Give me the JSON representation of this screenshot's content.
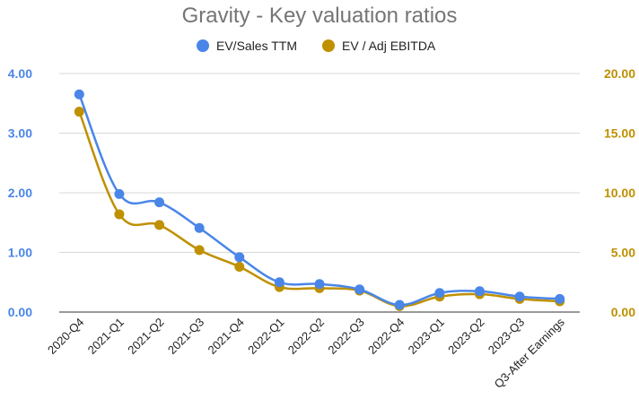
{
  "chart_data": {
    "type": "line",
    "title": "Gravity - Key valuation ratios",
    "categories": [
      "2020-Q4",
      "2021-Q1",
      "2021-Q2",
      "2021-Q3",
      "2021-Q4",
      "2022-Q1",
      "2022-Q2",
      "2022-Q3",
      "2022-Q4",
      "2023-Q1",
      "2023-Q2",
      "2023-Q3",
      "Q3-After Earnings"
    ],
    "series": [
      {
        "name": "EV/Sales TTM",
        "axis": "left",
        "color": "#4a86e8",
        "values": [
          3.65,
          1.98,
          1.84,
          1.41,
          0.92,
          0.5,
          0.47,
          0.38,
          0.12,
          0.32,
          0.35,
          0.26,
          0.22
        ]
      },
      {
        "name": "EV / Adj EBITDA",
        "axis": "right",
        "color": "#bf9000",
        "values": [
          16.8,
          8.2,
          7.3,
          5.2,
          3.8,
          2.1,
          2.0,
          1.8,
          0.5,
          1.3,
          1.5,
          1.1,
          0.9
        ]
      }
    ],
    "y_left": {
      "range": [
        0,
        4
      ],
      "ticks": [
        "0.00",
        "1.00",
        "2.00",
        "3.00",
        "4.00"
      ],
      "color": "#4a86e8"
    },
    "y_right": {
      "range": [
        0,
        20
      ],
      "ticks": [
        "0.00",
        "5.00",
        "10.00",
        "15.00",
        "20.00"
      ],
      "color": "#bf9000"
    },
    "grid": "horizontal",
    "legend_position": "top"
  }
}
